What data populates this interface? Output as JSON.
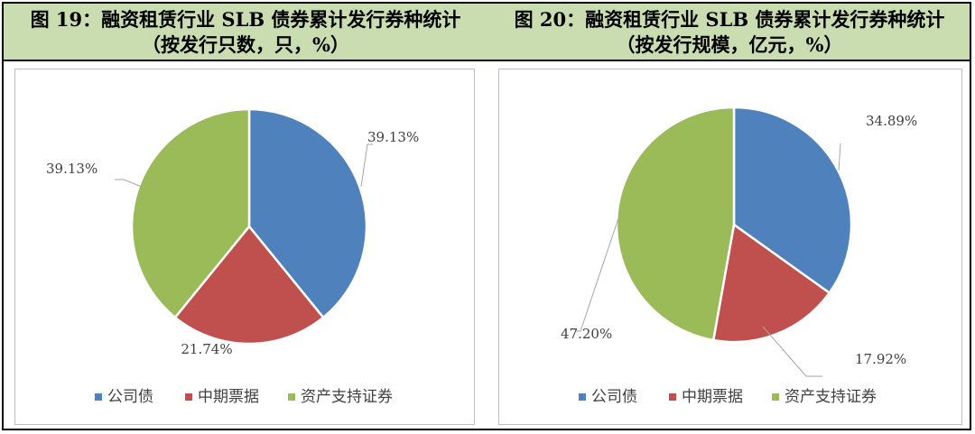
{
  "header": {
    "left_line1": "图 19：融资租赁行业 SLB 债券累计发行券种统计",
    "left_line2": "（按发行只数，只，%）",
    "right_line1": "图 20：融资租赁行业 SLB 债券累计发行券种统计",
    "right_line2": "（按发行规模，亿元，%）"
  },
  "chart_data": [
    {
      "type": "pie",
      "title": "图 19：融资租赁行业 SLB 债券累计发行券种统计（按发行只数，只，%）",
      "categories": [
        "公司债",
        "中期票据",
        "资产支持证券"
      ],
      "values": [
        39.13,
        21.74,
        39.13
      ],
      "labels": [
        "39.13%",
        "21.74%",
        "39.13%"
      ],
      "colors": [
        "#4f81bd",
        "#c0504d",
        "#9bbb59"
      ],
      "legend_position": "bottom"
    },
    {
      "type": "pie",
      "title": "图 20：融资租赁行业 SLB 债券累计发行券种统计（按发行规模，亿元，%）",
      "categories": [
        "公司债",
        "中期票据",
        "资产支持证券"
      ],
      "values": [
        34.89,
        17.92,
        47.2
      ],
      "labels": [
        "34.89%",
        "17.92%",
        "47.20%"
      ],
      "colors": [
        "#4f81bd",
        "#c0504d",
        "#9bbb59"
      ],
      "legend_position": "bottom"
    }
  ]
}
